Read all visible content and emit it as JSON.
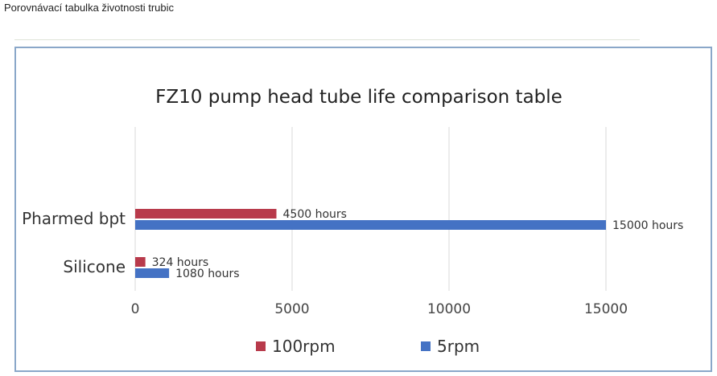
{
  "page": {
    "caption": "Porovnávací tabulka životnosti trubic"
  },
  "chart_data": {
    "type": "bar",
    "orientation": "horizontal",
    "title": "FZ10 pump head tube life comparison table",
    "categories": [
      "Pharmed bpt",
      "Silicone"
    ],
    "series": [
      {
        "name": "100rpm",
        "color": "#b83a4b",
        "values": [
          4500,
          324
        ],
        "labels": [
          "4500 hours",
          "324 hours"
        ]
      },
      {
        "name": "5rpm",
        "color": "#4472c4",
        "values": [
          15000,
          1080
        ],
        "labels": [
          "15000 hours",
          "1080 hours"
        ]
      }
    ],
    "xlim": [
      0,
      15000
    ],
    "xticks": [
      0,
      5000,
      10000,
      15000
    ],
    "grid": true,
    "legend": "bottom",
    "xlabel": "",
    "ylabel": ""
  }
}
